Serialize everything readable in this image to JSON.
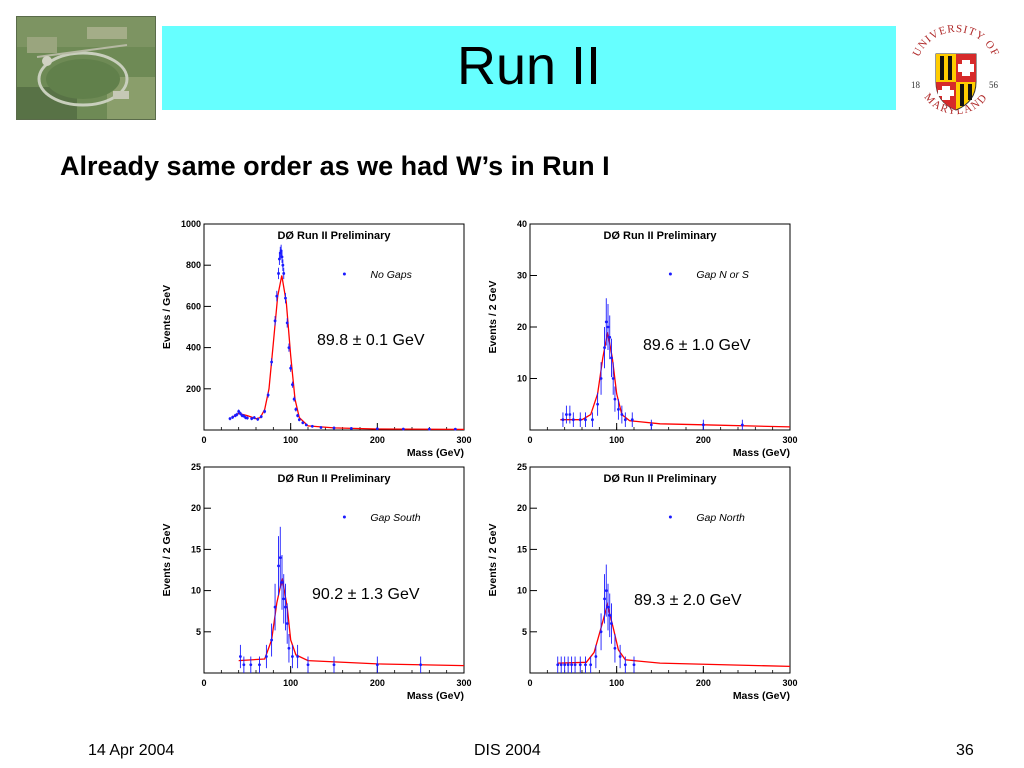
{
  "slide": {
    "title": "Run II",
    "headline": "Already same order as we had W’s in Run I",
    "seal": {
      "arc_top": "UNIVERSITY OF",
      "arc_bottom": "MARYLAND",
      "year_left": "18",
      "year_right": "56"
    },
    "footer": {
      "date": "14 Apr 2004",
      "event": "DIS 2004",
      "page": "36"
    },
    "colors": {
      "title_bar": "#66ffff",
      "data_points": "#1a1aff",
      "fit_curve": "#ff0000"
    }
  },
  "chart_data": [
    {
      "type": "scatter",
      "title": "DØ Run II Preliminary",
      "legend": "No Gaps",
      "legend_placement": "top-right",
      "annotation": "89.8 ± 0.1 GeV",
      "xlabel": "Mass  (GeV)",
      "ylabel": "Events / GeV",
      "xlim": [
        0,
        300
      ],
      "ylim": [
        0,
        1000
      ],
      "xticks": [
        "0",
        "100",
        "200",
        "300"
      ],
      "yticks": [
        "200",
        "400",
        "600",
        "800",
        "1000"
      ],
      "fit": [
        [
          32,
          60
        ],
        [
          40,
          80
        ],
        [
          50,
          70
        ],
        [
          60,
          55
        ],
        [
          65,
          60
        ],
        [
          70,
          100
        ],
        [
          75,
          200
        ],
        [
          80,
          420
        ],
        [
          85,
          650
        ],
        [
          89.8,
          750
        ],
        [
          95,
          620
        ],
        [
          100,
          360
        ],
        [
          105,
          150
        ],
        [
          110,
          60
        ],
        [
          120,
          20
        ],
        [
          150,
          10
        ],
        [
          200,
          5
        ],
        [
          300,
          3
        ]
      ],
      "points": [
        [
          30,
          55
        ],
        [
          33,
          62
        ],
        [
          36,
          70
        ],
        [
          38,
          75
        ],
        [
          40,
          90
        ],
        [
          42,
          80
        ],
        [
          44,
          70
        ],
        [
          46,
          68
        ],
        [
          48,
          60
        ],
        [
          50,
          58
        ],
        [
          55,
          55
        ],
        [
          58,
          60
        ],
        [
          62,
          52
        ],
        [
          66,
          65
        ],
        [
          70,
          90
        ],
        [
          74,
          170
        ],
        [
          78,
          330
        ],
        [
          82,
          530
        ],
        [
          84,
          650
        ],
        [
          86,
          760
        ],
        [
          87,
          830
        ],
        [
          88,
          860
        ],
        [
          89,
          870
        ],
        [
          90,
          840
        ],
        [
          91,
          800
        ],
        [
          92,
          760
        ],
        [
          94,
          640
        ],
        [
          96,
          520
        ],
        [
          98,
          400
        ],
        [
          100,
          300
        ],
        [
          102,
          220
        ],
        [
          104,
          150
        ],
        [
          106,
          100
        ],
        [
          108,
          70
        ],
        [
          110,
          50
        ],
        [
          114,
          35
        ],
        [
          118,
          25
        ],
        [
          125,
          18
        ],
        [
          135,
          12
        ],
        [
          150,
          10
        ],
        [
          170,
          8
        ],
        [
          200,
          6
        ],
        [
          230,
          5
        ],
        [
          260,
          4
        ],
        [
          290,
          4
        ]
      ]
    },
    {
      "type": "scatter",
      "title": "DØ Run II Preliminary",
      "legend": "Gap N or S",
      "legend_placement": "top-right",
      "annotation": "89.6 ± 1.0 GeV",
      "xlabel": "Mass  (GeV)",
      "ylabel": "Events / 2 GeV",
      "xlim": [
        0,
        300
      ],
      "ylim": [
        0,
        40
      ],
      "xticks": [
        "0",
        "100",
        "200",
        "300"
      ],
      "yticks": [
        "10",
        "20",
        "30",
        "40"
      ],
      "fit": [
        [
          35,
          2
        ],
        [
          60,
          2
        ],
        [
          70,
          3
        ],
        [
          78,
          7
        ],
        [
          84,
          14
        ],
        [
          89.6,
          19
        ],
        [
          95,
          14
        ],
        [
          100,
          7
        ],
        [
          106,
          3
        ],
        [
          115,
          1.8
        ],
        [
          150,
          1.2
        ],
        [
          200,
          1
        ],
        [
          300,
          0.6
        ]
      ],
      "points": [
        [
          38,
          2
        ],
        [
          42,
          3
        ],
        [
          46,
          3
        ],
        [
          50,
          2
        ],
        [
          58,
          2
        ],
        [
          64,
          2
        ],
        [
          72,
          2
        ],
        [
          78,
          5
        ],
        [
          82,
          10
        ],
        [
          86,
          16
        ],
        [
          88,
          21
        ],
        [
          90,
          20
        ],
        [
          92,
          18
        ],
        [
          94,
          14
        ],
        [
          96,
          10
        ],
        [
          98,
          6
        ],
        [
          102,
          4
        ],
        [
          106,
          3
        ],
        [
          110,
          2
        ],
        [
          118,
          2
        ],
        [
          140,
          1
        ],
        [
          200,
          1
        ],
        [
          245,
          1
        ]
      ]
    },
    {
      "type": "scatter",
      "title": "DØ Run II Preliminary",
      "legend": "Gap South",
      "legend_placement": "top-right",
      "annotation": "90.2 ± 1.3 GeV",
      "xlabel": "Mass  (GeV)",
      "ylabel": "Events / 2 GeV",
      "xlim": [
        0,
        300
      ],
      "ylim": [
        0,
        25
      ],
      "xticks": [
        "0",
        "100",
        "200",
        "300"
      ],
      "yticks": [
        "5",
        "10",
        "15",
        "20",
        "25"
      ],
      "fit": [
        [
          40,
          1.5
        ],
        [
          70,
          1.7
        ],
        [
          78,
          4
        ],
        [
          84,
          8.5
        ],
        [
          90.2,
          11.5
        ],
        [
          96,
          8
        ],
        [
          100,
          4
        ],
        [
          106,
          2.2
        ],
        [
          120,
          1.5
        ],
        [
          200,
          1.1
        ],
        [
          300,
          0.9
        ]
      ],
      "points": [
        [
          42,
          2
        ],
        [
          46,
          1
        ],
        [
          54,
          1
        ],
        [
          64,
          1
        ],
        [
          72,
          2
        ],
        [
          78,
          4
        ],
        [
          82,
          8
        ],
        [
          86,
          13
        ],
        [
          88,
          14
        ],
        [
          90,
          11
        ],
        [
          92,
          9
        ],
        [
          94,
          8
        ],
        [
          96,
          6
        ],
        [
          98,
          3
        ],
        [
          102,
          2
        ],
        [
          108,
          2
        ],
        [
          120,
          1
        ],
        [
          150,
          1
        ],
        [
          200,
          1
        ],
        [
          250,
          1
        ]
      ]
    },
    {
      "type": "scatter",
      "title": "DØ Run II Preliminary",
      "legend": "Gap North",
      "legend_placement": "top-right",
      "annotation": "89.3 ± 2.0 GeV",
      "xlabel": "Mass  (GeV)",
      "ylabel": "Events / 2 GeV",
      "xlim": [
        0,
        300
      ],
      "ylim": [
        0,
        25
      ],
      "xticks": [
        "0",
        "100",
        "200",
        "300"
      ],
      "yticks": [
        "5",
        "10",
        "15",
        "20",
        "25"
      ],
      "fit": [
        [
          32,
          1.2
        ],
        [
          65,
          1.3
        ],
        [
          74,
          2.5
        ],
        [
          82,
          5.5
        ],
        [
          89.3,
          8.3
        ],
        [
          96,
          5.5
        ],
        [
          102,
          2.8
        ],
        [
          110,
          1.6
        ],
        [
          150,
          1.2
        ],
        [
          300,
          0.8
        ]
      ],
      "points": [
        [
          32,
          1
        ],
        [
          36,
          1
        ],
        [
          40,
          1
        ],
        [
          44,
          1
        ],
        [
          48,
          1
        ],
        [
          52,
          1
        ],
        [
          58,
          1
        ],
        [
          64,
          1
        ],
        [
          70,
          1
        ],
        [
          76,
          2
        ],
        [
          82,
          5
        ],
        [
          86,
          9
        ],
        [
          88,
          10
        ],
        [
          90,
          8
        ],
        [
          92,
          7
        ],
        [
          94,
          6
        ],
        [
          98,
          3
        ],
        [
          104,
          2
        ],
        [
          110,
          1
        ],
        [
          120,
          1
        ]
      ]
    }
  ]
}
